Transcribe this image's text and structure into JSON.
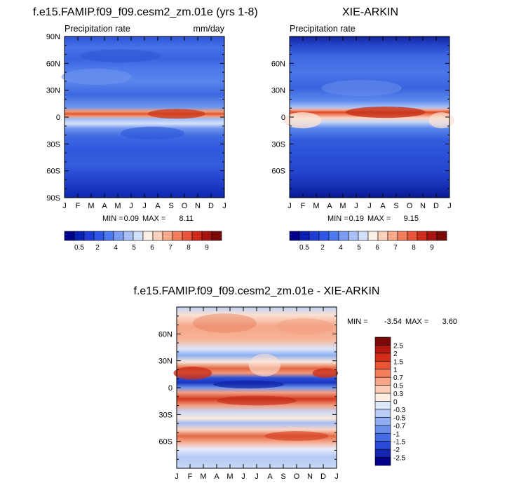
{
  "chart_data": [
    {
      "id": "model",
      "type": "heatmap",
      "title": "f.e15.FAMIP.f09_f09.cesm2_zm.01e (yrs 1-8)",
      "subtitle_left": "Precipitation rate",
      "subtitle_right": "mm/day",
      "x_tick_labels": [
        "J",
        "F",
        "M",
        "A",
        "M",
        "J",
        "J",
        "A",
        "S",
        "O",
        "N",
        "D",
        "J"
      ],
      "y_tick_labels": [
        "90N",
        "60N",
        "30N",
        "0",
        "30S",
        "60S",
        "90S"
      ],
      "ylim": [
        -90,
        90
      ],
      "stats": {
        "min_label": "MIN =",
        "min": "0.09",
        "max_label": "MAX =",
        "max": "8.11"
      },
      "colorbar": {
        "orientation": "horizontal",
        "colors": [
          "#00008b",
          "#0a1fb3",
          "#1f3dd6",
          "#2f58e8",
          "#4d7af0",
          "#7a9bf2",
          "#a8c0f5",
          "#d3e0fa",
          "#fff0e6",
          "#fcd2bd",
          "#f8a98a",
          "#f27d5c",
          "#e8553a",
          "#d02c1e",
          "#a8140f",
          "#7a0a0a"
        ],
        "labels": [
          "0.5",
          "2",
          "4",
          "5",
          "6",
          "7",
          "8",
          "9"
        ]
      }
    },
    {
      "id": "obs",
      "type": "heatmap",
      "title": "XIE-ARKIN",
      "subtitle_left": "Precipitation rate",
      "x_tick_labels": [
        "J",
        "F",
        "M",
        "A",
        "M",
        "J",
        "J",
        "A",
        "S",
        "O",
        "N",
        "D",
        "J"
      ],
      "y_tick_labels": [
        "60N",
        "30N",
        "0",
        "30S",
        "60S"
      ],
      "ylim": [
        -90,
        90
      ],
      "stats": {
        "min_label": "MIN =",
        "min": "0.19",
        "max_label": "MAX =",
        "max": "9.15"
      },
      "colorbar": {
        "orientation": "horizontal",
        "colors": [
          "#00008b",
          "#0a1fb3",
          "#1f3dd6",
          "#2f58e8",
          "#4d7af0",
          "#7a9bf2",
          "#a8c0f5",
          "#d3e0fa",
          "#fff0e6",
          "#fcd2bd",
          "#f8a98a",
          "#f27d5c",
          "#e8553a",
          "#d02c1e",
          "#a8140f",
          "#7a0a0a"
        ],
        "labels": [
          "0.5",
          "2",
          "4",
          "5",
          "6",
          "7",
          "8",
          "9"
        ]
      }
    },
    {
      "id": "diff",
      "type": "heatmap",
      "title": "f.e15.FAMIP.f09_f09.cesm2_zm.01e - XIE-ARKIN",
      "x_tick_labels": [
        "J",
        "F",
        "M",
        "A",
        "M",
        "J",
        "J",
        "A",
        "S",
        "O",
        "N",
        "D",
        "J"
      ],
      "y_tick_labels": [
        "60N",
        "30N",
        "0",
        "30S",
        "60S"
      ],
      "ylim": [
        -90,
        90
      ],
      "stats": {
        "min_label": "MIN =",
        "min": "-3.54",
        "max_label": "MAX =",
        "max": "3.60"
      },
      "colorbar": {
        "orientation": "vertical",
        "colors": [
          "#7a0a0a",
          "#b3170f",
          "#d42d1a",
          "#e85334",
          "#f47f5c",
          "#f9a688",
          "#fccdb6",
          "#fff0e3",
          "#dde8fb",
          "#b8ccf5",
          "#8fadf0",
          "#6a8eec",
          "#456be6",
          "#2a4ad8",
          "#1525b0",
          "#00008b"
        ],
        "labels": [
          "2.5",
          "2",
          "1.5",
          "1",
          "0.7",
          "0.5",
          "0.3",
          "0",
          "-0.3",
          "-0.5",
          "-0.7",
          "-1",
          "-1.5",
          "-2",
          "-2.5"
        ]
      }
    }
  ]
}
